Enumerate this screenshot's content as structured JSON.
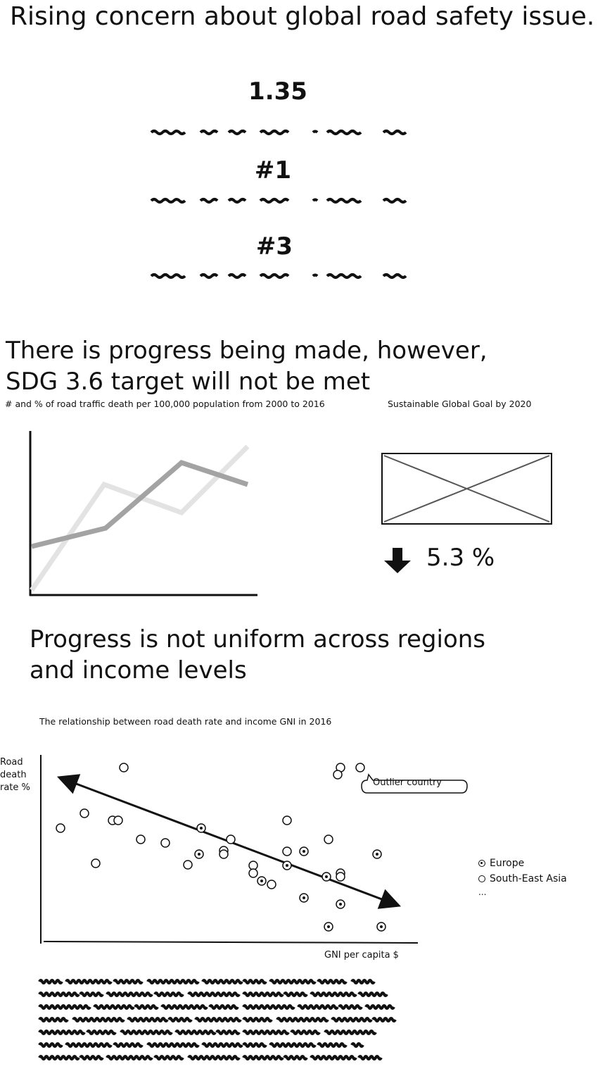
{
  "section1": {
    "title": "Rising concern about global road safety issue.",
    "stats": [
      {
        "value": "1.35"
      },
      {
        "value": "#1"
      },
      {
        "value": "#3"
      }
    ]
  },
  "section2": {
    "title_line1": "There is progress being made, however,",
    "title_line2": "SDG 3.6 target will not be met",
    "left_caption": "# and % of road traffic  death per 100,000 population from 2000 to 2016",
    "right_caption": "Sustainable Global Goal by 2020",
    "change_value": "5.3 %",
    "change_icon": "arrow-down-icon"
  },
  "section3": {
    "title_line1": "Progress is not uniform across regions",
    "title_line2": "and income levels",
    "scatter_caption": "The relationship between road death rate and income GNI in 2016",
    "y_label_lines": [
      "Road",
      "death",
      "rate %"
    ],
    "x_label": "GNI per capita $",
    "callout": "Outlier country",
    "legend": [
      {
        "label": "Europe",
        "filled": true
      },
      {
        "label": "South-East Asia",
        "filled": false
      },
      {
        "label": "...",
        "filled": false
      }
    ]
  },
  "colors": {
    "ink": "#111111",
    "series_dark": "#a3a3a3",
    "series_light": "#e3e3e3",
    "placeholder_stroke": "#555555"
  }
}
